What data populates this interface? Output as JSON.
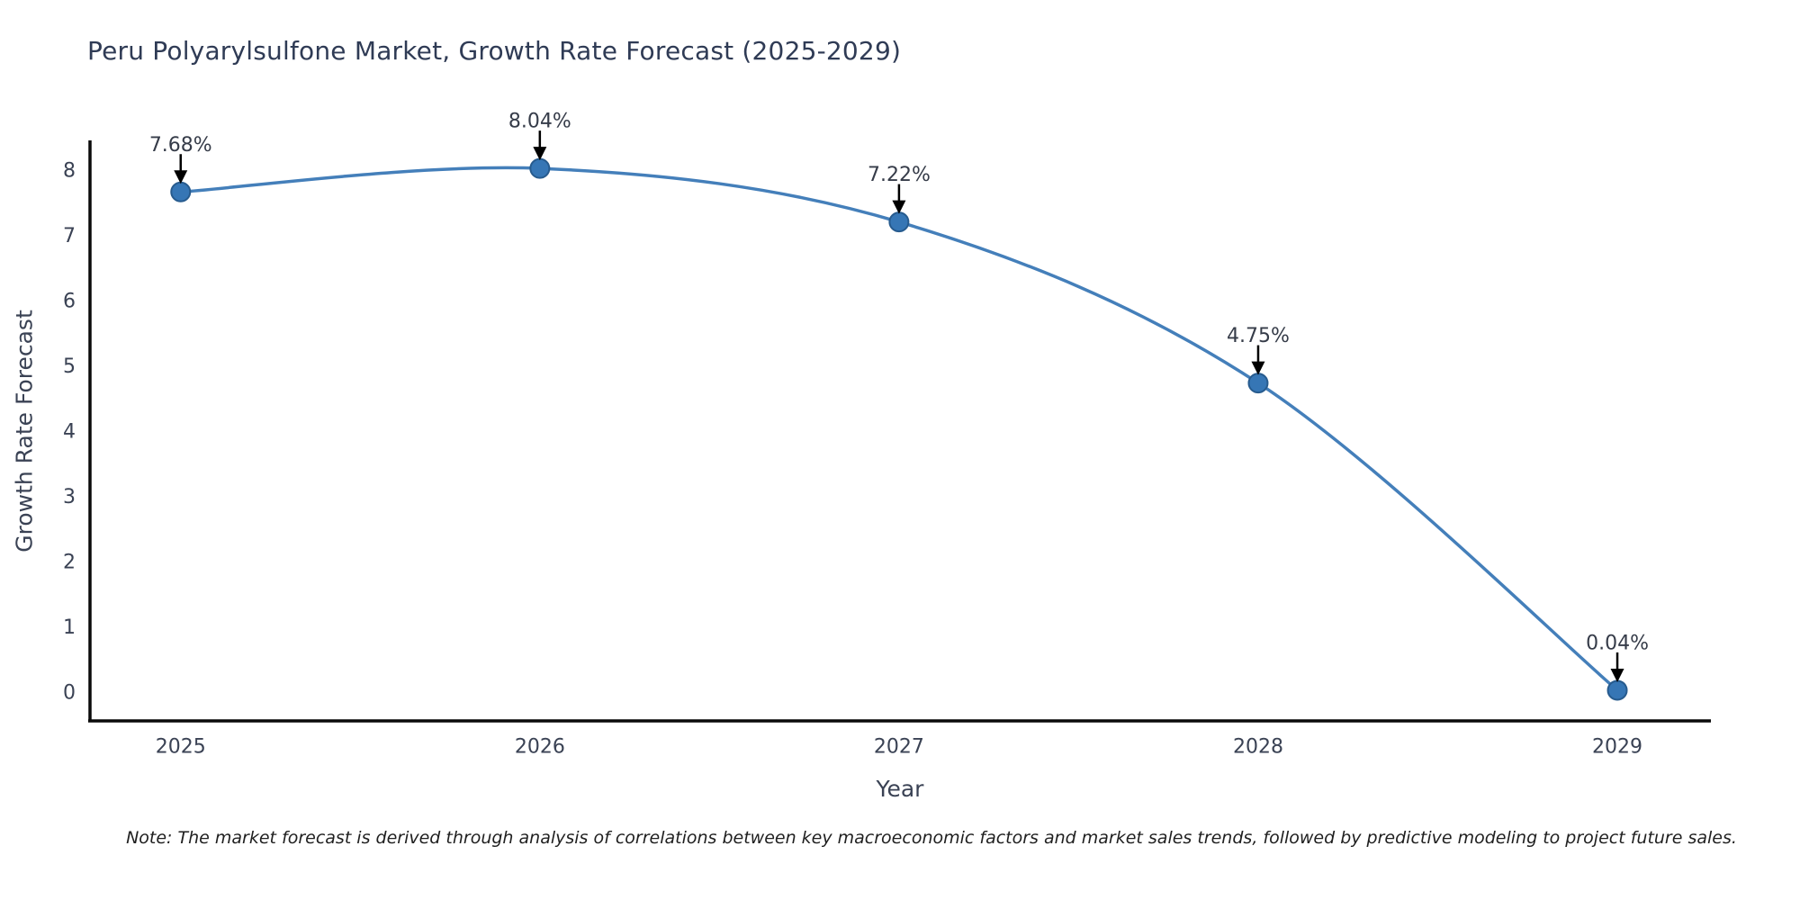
{
  "title": "Peru Polyarylsulfone Market, Growth Rate Forecast (2025-2029)",
  "note": "Note: The market forecast is derived through analysis of correlations between key macroeconomic factors and market sales trends, followed by predictive modeling to project future sales.",
  "chart_data": {
    "type": "line",
    "title": "Peru Polyarylsulfone Market, Growth Rate Forecast (2025-2029)",
    "xlabel": "Year",
    "ylabel": "Growth Rate Forecast",
    "x": [
      2025,
      2026,
      2027,
      2028,
      2029
    ],
    "values": [
      7.68,
      8.04,
      7.22,
      4.75,
      0.04
    ],
    "point_labels": [
      "7.68%",
      "8.04%",
      "7.22%",
      "4.75%",
      "0.04%"
    ],
    "x_tick_labels": [
      "2025",
      "2026",
      "2027",
      "2028",
      "2029"
    ],
    "y_ticks": [
      0,
      1,
      2,
      3,
      4,
      5,
      6,
      7,
      8
    ],
    "xlim": [
      2024.745,
      2029.258
    ],
    "ylim": [
      -0.43,
      8.47
    ],
    "grid": false,
    "legend": "none",
    "marker_style": "circle",
    "annotation_arrows": true,
    "colors": {
      "line": "#447fba",
      "marker_fill": "#3676b5",
      "marker_edge": "#275b8e",
      "arrow": "#000000",
      "spine": "#0a0a0a",
      "title_text": "#2f3b55",
      "axis_text": "#3a4254",
      "point_label_text": "#363c49",
      "note_text": "#1f1f1f",
      "background": "#ffffff"
    }
  }
}
